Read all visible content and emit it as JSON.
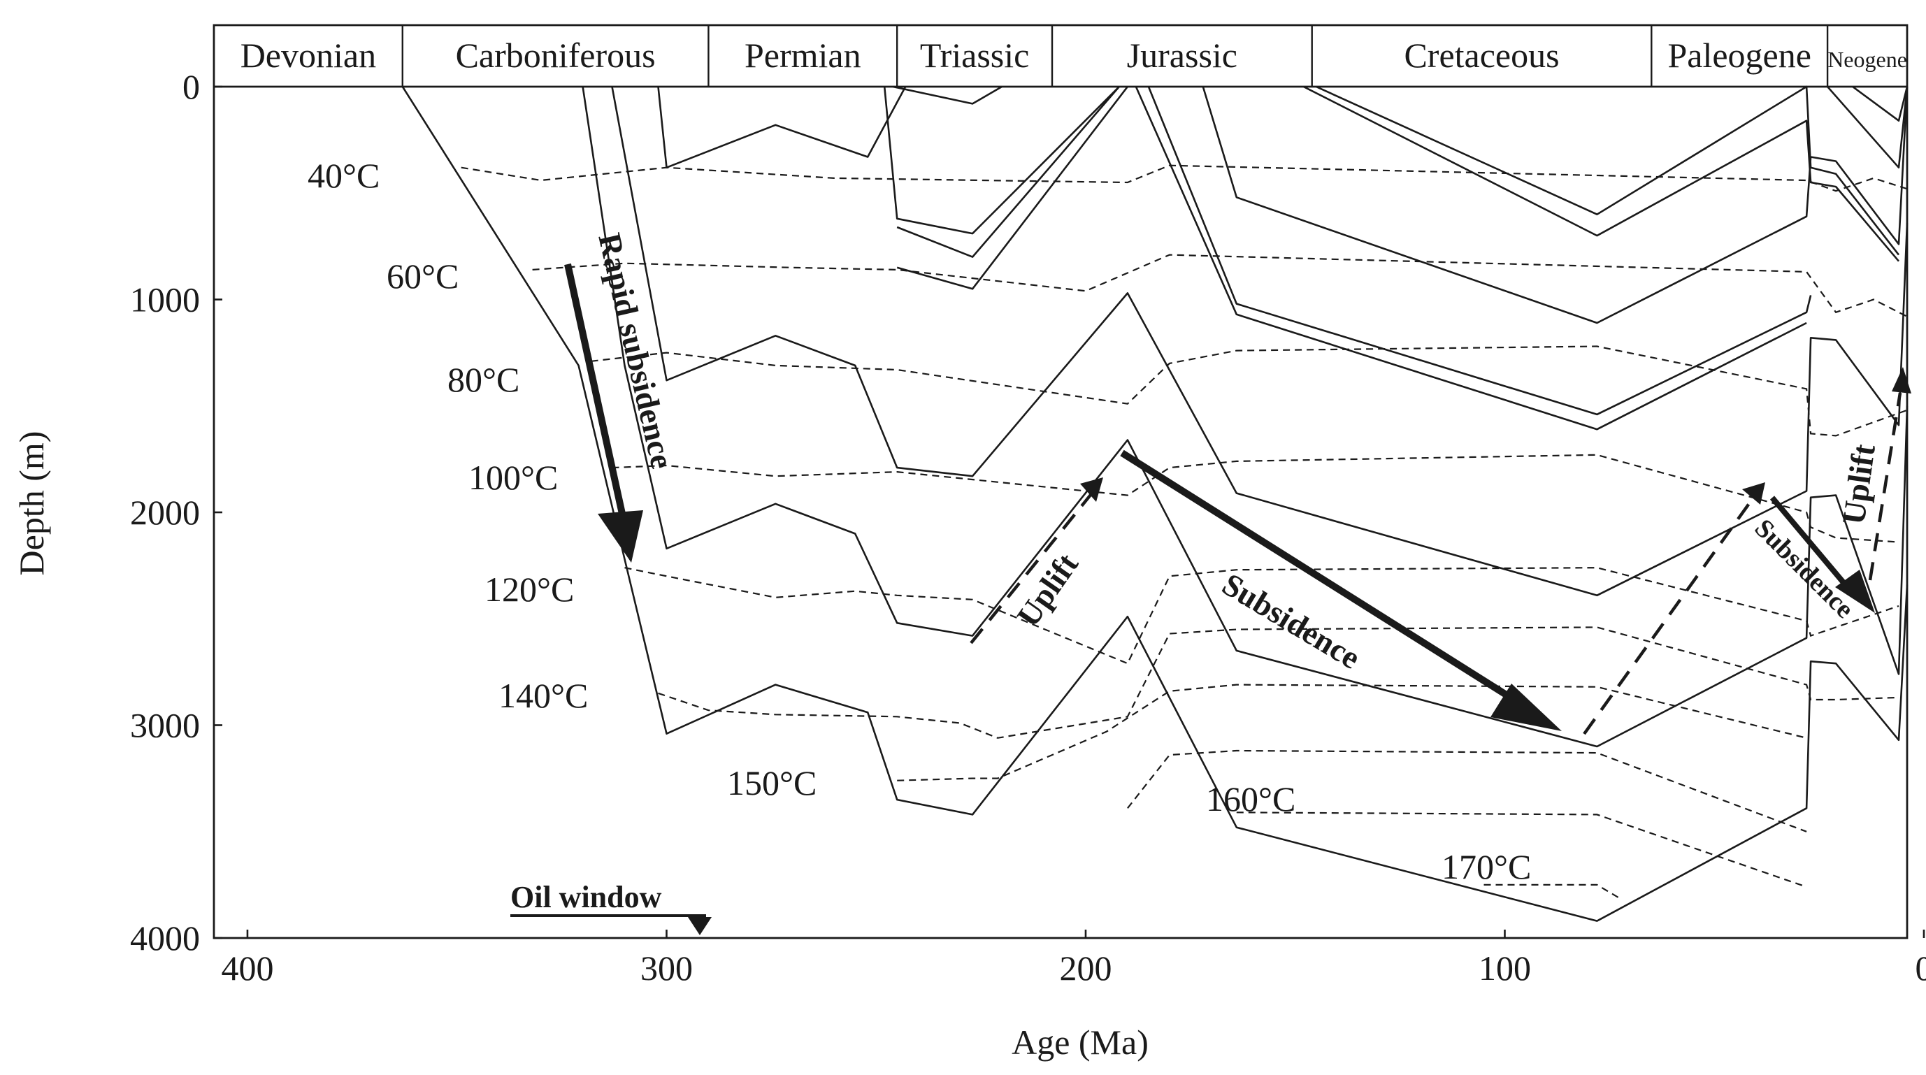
{
  "chart_data": {
    "type": "line",
    "title": "",
    "xlabel": "Age (Ma)",
    "ylabel": "Depth (m)",
    "xlim": [
      408,
      4
    ],
    "ylim": [
      0,
      4000
    ],
    "x_ticks": [
      "400",
      "300",
      "200",
      "100",
      "0"
    ],
    "y_ticks": [
      "0",
      "1000",
      "2000",
      "3000",
      "4000"
    ],
    "periods": [
      {
        "name": "Devonian",
        "start": 408,
        "end": 363
      },
      {
        "name": "Carboniferous",
        "start": 363,
        "end": 290
      },
      {
        "name": "Permian",
        "start": 290,
        "end": 245
      },
      {
        "name": "Triassic",
        "start": 245,
        "end": 208
      },
      {
        "name": "Jurassic",
        "start": 208,
        "end": 146
      },
      {
        "name": "Cretaceous",
        "start": 146,
        "end": 65
      },
      {
        "name": "Paleogene",
        "start": 65,
        "end": 23
      },
      {
        "name": "Neogene",
        "start": 23,
        "end": 4
      }
    ],
    "burial_curves": [
      {
        "name": "horizon-1",
        "points": [
          [
            363,
            0
          ],
          [
            321,
            1310
          ],
          [
            310,
            2220
          ],
          [
            300,
            3040
          ],
          [
            274,
            2810
          ],
          [
            252,
            2940
          ],
          [
            245,
            3350
          ],
          [
            227,
            3420
          ],
          [
            190,
            2490
          ],
          [
            164,
            3480
          ],
          [
            78,
            3920
          ],
          [
            28,
            3390
          ],
          [
            27,
            2700
          ],
          [
            21,
            2710
          ],
          [
            6,
            3070
          ],
          [
            4,
            2340
          ]
        ]
      },
      {
        "name": "horizon-2",
        "points": [
          [
            320,
            0
          ],
          [
            310,
            1310
          ],
          [
            300,
            2170
          ],
          [
            274,
            1960
          ],
          [
            255,
            2100
          ],
          [
            245,
            2520
          ],
          [
            227,
            2580
          ],
          [
            190,
            1660
          ],
          [
            164,
            2650
          ],
          [
            78,
            3100
          ],
          [
            28,
            2590
          ],
          [
            27,
            1930
          ],
          [
            21,
            1920
          ],
          [
            6,
            2760
          ],
          [
            4,
            1500
          ]
        ]
      },
      {
        "name": "horizon-3",
        "points": [
          [
            313,
            0
          ],
          [
            300,
            1380
          ],
          [
            274,
            1170
          ],
          [
            255,
            1310
          ],
          [
            245,
            1790
          ],
          [
            227,
            1830
          ],
          [
            190,
            970
          ],
          [
            164,
            1910
          ],
          [
            78,
            2390
          ],
          [
            28,
            1900
          ],
          [
            27,
            1180
          ],
          [
            21,
            1190
          ],
          [
            6,
            1590
          ],
          [
            4,
            640
          ]
        ]
      },
      {
        "name": "horizon-4",
        "points": [
          [
            302,
            0
          ],
          [
            300,
            380
          ],
          [
            274,
            180
          ],
          [
            252,
            330
          ],
          [
            243,
            0
          ]
        ]
      },
      {
        "name": "horizon-5",
        "points": [
          [
            248,
            0
          ],
          [
            245,
            620
          ],
          [
            227,
            690
          ],
          [
            192,
            0
          ]
        ]
      },
      {
        "name": "horizon-6",
        "points": [
          [
            245,
            850
          ],
          [
            227,
            950
          ],
          [
            190,
            0
          ]
        ]
      },
      {
        "name": "horizon-7",
        "points": [
          [
            245,
            660
          ],
          [
            227,
            800
          ],
          [
            192,
            0
          ]
        ]
      },
      {
        "name": "horizon-8",
        "points": [
          [
            246,
            0
          ],
          [
            227,
            80
          ],
          [
            220,
            0
          ]
        ]
      },
      {
        "name": "horizon-9",
        "points": [
          [
            185,
            0
          ],
          [
            164,
            1020
          ],
          [
            78,
            1540
          ],
          [
            28,
            1060
          ],
          [
            27,
            980
          ]
        ]
      },
      {
        "name": "horizon-10",
        "points": [
          [
            188,
            0
          ],
          [
            164,
            1070
          ],
          [
            78,
            1610
          ],
          [
            28,
            1110
          ]
        ]
      },
      {
        "name": "horizon-11",
        "points": [
          [
            172,
            0
          ],
          [
            164,
            520
          ],
          [
            78,
            1110
          ],
          [
            28,
            610
          ],
          [
            27,
            330
          ],
          [
            21,
            350
          ],
          [
            6,
            740
          ],
          [
            4,
            0
          ]
        ]
      },
      {
        "name": "horizon-12",
        "points": [
          [
            145,
            0
          ],
          [
            78,
            600
          ],
          [
            28,
            0
          ],
          [
            27,
            380
          ],
          [
            21,
            410
          ],
          [
            6,
            790
          ]
        ]
      },
      {
        "name": "horizon-13",
        "points": [
          [
            148,
            0
          ],
          [
            78,
            700
          ],
          [
            28,
            160
          ],
          [
            27,
            450
          ],
          [
            21,
            470
          ],
          [
            6,
            820
          ]
        ]
      },
      {
        "name": "horizon-14",
        "points": [
          [
            17,
            0
          ],
          [
            6,
            160
          ],
          [
            4,
            0
          ]
        ]
      },
      {
        "name": "horizon-15",
        "points": [
          [
            23,
            0
          ],
          [
            6,
            380
          ],
          [
            4,
            0
          ]
        ]
      }
    ],
    "isotherms": [
      {
        "label": "40°C",
        "points": [
          [
            349,
            380
          ],
          [
            330,
            440
          ],
          [
            300,
            380
          ],
          [
            260,
            430
          ],
          [
            190,
            450
          ],
          [
            180,
            370
          ],
          [
            28,
            440
          ],
          [
            21,
            490
          ],
          [
            12,
            430
          ],
          [
            4,
            480
          ]
        ]
      },
      {
        "label": "60°C",
        "points": [
          [
            332,
            860
          ],
          [
            310,
            830
          ],
          [
            270,
            850
          ],
          [
            245,
            860
          ],
          [
            200,
            960
          ],
          [
            180,
            790
          ],
          [
            28,
            870
          ],
          [
            21,
            1060
          ],
          [
            12,
            1000
          ],
          [
            4,
            1080
          ]
        ]
      },
      {
        "label": "80°C",
        "points": [
          [
            318,
            1290
          ],
          [
            300,
            1250
          ],
          [
            274,
            1310
          ],
          [
            245,
            1330
          ],
          [
            190,
            1490
          ],
          [
            180,
            1300
          ],
          [
            164,
            1240
          ],
          [
            78,
            1220
          ],
          [
            28,
            1420
          ],
          [
            27,
            1630
          ],
          [
            21,
            1640
          ],
          [
            4,
            1520
          ]
        ]
      },
      {
        "label": "100°C",
        "points": [
          [
            313,
            1790
          ],
          [
            300,
            1780
          ],
          [
            274,
            1830
          ],
          [
            245,
            1810
          ],
          [
            190,
            1920
          ],
          [
            180,
            1790
          ],
          [
            164,
            1760
          ],
          [
            78,
            1730
          ],
          [
            28,
            2000
          ],
          [
            27,
            2070
          ],
          [
            21,
            2120
          ],
          [
            6,
            2140
          ]
        ]
      },
      {
        "label": "120°C",
        "points": [
          [
            310,
            2260
          ],
          [
            300,
            2300
          ],
          [
            274,
            2400
          ],
          [
            255,
            2370
          ],
          [
            245,
            2390
          ],
          [
            227,
            2410
          ],
          [
            190,
            2710
          ],
          [
            180,
            2300
          ],
          [
            164,
            2270
          ],
          [
            78,
            2260
          ],
          [
            28,
            2510
          ],
          [
            27,
            2580
          ],
          [
            6,
            2440
          ]
        ]
      },
      {
        "label": "140°C",
        "points": [
          [
            302,
            2850
          ],
          [
            290,
            2930
          ],
          [
            274,
            2950
          ],
          [
            245,
            2960
          ],
          [
            230,
            2990
          ],
          [
            221,
            3060
          ],
          [
            190,
            2960
          ],
          [
            180,
            2570
          ],
          [
            164,
            2550
          ],
          [
            78,
            2540
          ],
          [
            28,
            2810
          ],
          [
            27,
            2880
          ],
          [
            21,
            2880
          ],
          [
            6,
            2870
          ]
        ]
      },
      {
        "label": "150°C",
        "points": [
          [
            245,
            3260
          ],
          [
            227,
            3250
          ],
          [
            221,
            3250
          ],
          [
            195,
            3030
          ],
          [
            180,
            2840
          ],
          [
            164,
            2810
          ],
          [
            78,
            2820
          ],
          [
            28,
            3060
          ]
        ]
      },
      {
        "label": "160°C",
        "points": [
          [
            190,
            3390
          ],
          [
            180,
            3140
          ],
          [
            164,
            3120
          ],
          [
            78,
            3130
          ],
          [
            28,
            3500
          ]
        ]
      },
      {
        "label": "170°C",
        "points": [
          [
            164,
            3410
          ],
          [
            78,
            3420
          ],
          [
            28,
            3760
          ]
        ]
      },
      {
        "label": "",
        "points": [
          [
            105,
            3750
          ],
          [
            78,
            3750
          ],
          [
            72,
            3820
          ]
        ]
      }
    ],
    "annotations": [
      {
        "text": "Rapid subsidence",
        "style": "bold"
      },
      {
        "text": "Uplift",
        "style": "bold"
      },
      {
        "text": "Subsidence",
        "style": "bold"
      },
      {
        "text": "Subsidence",
        "style": "bold"
      },
      {
        "text": "Uplift",
        "style": "bold"
      },
      {
        "text": "Oil window",
        "style": "bold-underline",
        "age": 286
      }
    ]
  }
}
